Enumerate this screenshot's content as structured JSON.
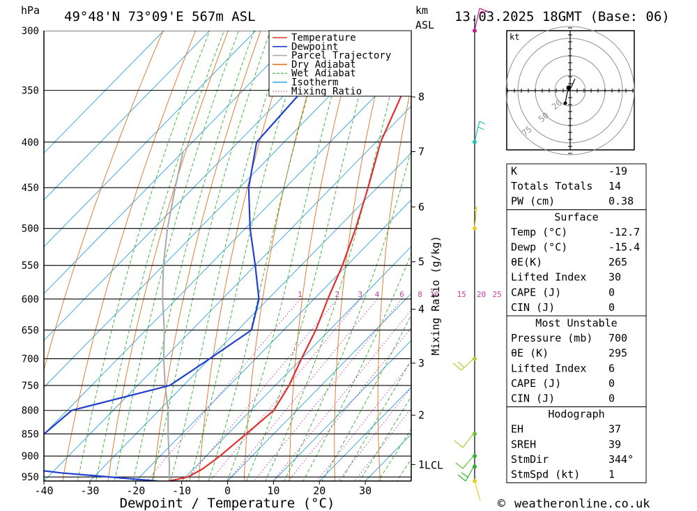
{
  "header": {
    "hpa_label": "hPa",
    "location": "49°48'N  73°09'E  567m  ASL",
    "km_label": "km",
    "asl_label": "ASL",
    "datetime": "13.03.2025  18GMT  (Base: 06)"
  },
  "chart_data": {
    "type": "line",
    "xlabel": "Dewpoint / Temperature (°C)",
    "ylabel": "hPa",
    "xlim": [
      -40,
      40
    ],
    "pressure_range": [
      300,
      960
    ],
    "x_ticks": [
      -40,
      -30,
      -20,
      -10,
      0,
      10,
      20,
      30
    ],
    "y_ticks": [
      300,
      350,
      400,
      450,
      500,
      550,
      600,
      650,
      700,
      750,
      800,
      850,
      900,
      950
    ],
    "km_ticks": [
      {
        "label": "8",
        "p": 356
      },
      {
        "label": "7",
        "p": 410
      },
      {
        "label": "6",
        "p": 473
      },
      {
        "label": "5",
        "p": 545
      },
      {
        "label": "4",
        "p": 616
      },
      {
        "label": "3",
        "p": 708
      },
      {
        "label": "2",
        "p": 810
      },
      {
        "label": "1",
        "p": 920
      }
    ],
    "lcl_label": "LCL",
    "lcl_pressure": 922,
    "mixing_ratio_axis_label": "Mixing Ratio (g/kg)",
    "mixing_ratio_labels": [
      "1",
      "2",
      "3",
      "4",
      "6",
      "8",
      "10",
      "15",
      "20",
      "25"
    ],
    "mixing_ratio_values": [
      1,
      2,
      3,
      4,
      6,
      8,
      10,
      15,
      20,
      25
    ],
    "series": [
      {
        "name": "Temperature",
        "color": "#e03030",
        "points": [
          [
            300,
            -52
          ],
          [
            350,
            -45
          ],
          [
            400,
            -39
          ],
          [
            450,
            -32
          ],
          [
            500,
            -26
          ],
          [
            550,
            -21
          ],
          [
            600,
            -17
          ],
          [
            650,
            -13
          ],
          [
            700,
            -10
          ],
          [
            750,
            -7
          ],
          [
            800,
            -5
          ],
          [
            850,
            -6
          ],
          [
            900,
            -7
          ],
          [
            930,
            -8
          ],
          [
            950,
            -9.5
          ],
          [
            960,
            -12.7
          ]
        ]
      },
      {
        "name": "Dewpoint",
        "color": "#2040d0",
        "points": [
          [
            300,
            -70
          ],
          [
            350,
            -67
          ],
          [
            400,
            -66
          ],
          [
            450,
            -58
          ],
          [
            500,
            -49
          ],
          [
            550,
            -40
          ],
          [
            600,
            -32
          ],
          [
            650,
            -27
          ],
          [
            700,
            -30
          ],
          [
            750,
            -33
          ],
          [
            800,
            -49
          ],
          [
            850,
            -50
          ],
          [
            900,
            -61
          ],
          [
            920,
            -55
          ],
          [
            940,
            -38
          ],
          [
            960,
            -15.4
          ]
        ]
      },
      {
        "name": "Parcel Trajectory",
        "color": "#a8a8a8",
        "points": [
          [
            960,
            -12.7
          ],
          [
            922,
            -16
          ],
          [
            850,
            -23
          ],
          [
            800,
            -28
          ],
          [
            750,
            -34
          ],
          [
            700,
            -40
          ],
          [
            650,
            -46
          ],
          [
            600,
            -53
          ],
          [
            550,
            -60
          ],
          [
            500,
            -67
          ],
          [
            450,
            -74
          ],
          [
            410,
            -80
          ]
        ]
      }
    ],
    "legend_items": [
      {
        "label": "Temperature",
        "color": "#e03030",
        "style": "solid"
      },
      {
        "label": "Dewpoint",
        "color": "#2040d0",
        "style": "solid"
      },
      {
        "label": "Parcel Trajectory",
        "color": "#a8a8a8",
        "style": "solid"
      },
      {
        "label": "Dry Adiabat",
        "color": "#e07020",
        "style": "solid"
      },
      {
        "label": "Wet Adiabat",
        "color": "#30b030",
        "style": "dashed"
      },
      {
        "label": "Isotherm",
        "color": "#30a0e0",
        "style": "solid"
      },
      {
        "label": "Mixing Ratio",
        "color": "#c040a0",
        "style": "dotted"
      }
    ],
    "legend_placement": "top-right"
  },
  "hodograph": {
    "unit_label": "kt",
    "ring_labels": [
      "20",
      "50",
      "75"
    ]
  },
  "indices_table": {
    "rows": [
      {
        "label": "K",
        "value": "-19"
      },
      {
        "label": "Totals Totals",
        "value": "14"
      },
      {
        "label": "PW (cm)",
        "value": "0.38"
      }
    ]
  },
  "surface_table": {
    "title": "Surface",
    "rows": [
      {
        "label": "Temp (°C)",
        "value": "-12.7"
      },
      {
        "label": "Dewp (°C)",
        "value": "-15.4"
      },
      {
        "label": "θE(K)",
        "value": "265"
      },
      {
        "label": "Lifted Index",
        "value": "30"
      },
      {
        "label": "CAPE (J)",
        "value": "0"
      },
      {
        "label": "CIN (J)",
        "value": "0"
      }
    ]
  },
  "unstable_table": {
    "title": "Most Unstable",
    "rows": [
      {
        "label": "Pressure (mb)",
        "value": "700"
      },
      {
        "label": "θE (K)",
        "value": "295"
      },
      {
        "label": "Lifted Index",
        "value": "6"
      },
      {
        "label": "CAPE (J)",
        "value": "0"
      },
      {
        "label": "CIN (J)",
        "value": "0"
      }
    ]
  },
  "hodograph_table": {
    "title": "Hodograph",
    "rows": [
      {
        "label": "EH",
        "value": "37"
      },
      {
        "label": "SREH",
        "value": "39"
      },
      {
        "label": "StmDir",
        "value": "344°"
      },
      {
        "label": "StmSpd (kt)",
        "value": "1"
      }
    ]
  },
  "footer": {
    "copyright_symbol": "©",
    "site": "weatheronline.co.uk"
  }
}
